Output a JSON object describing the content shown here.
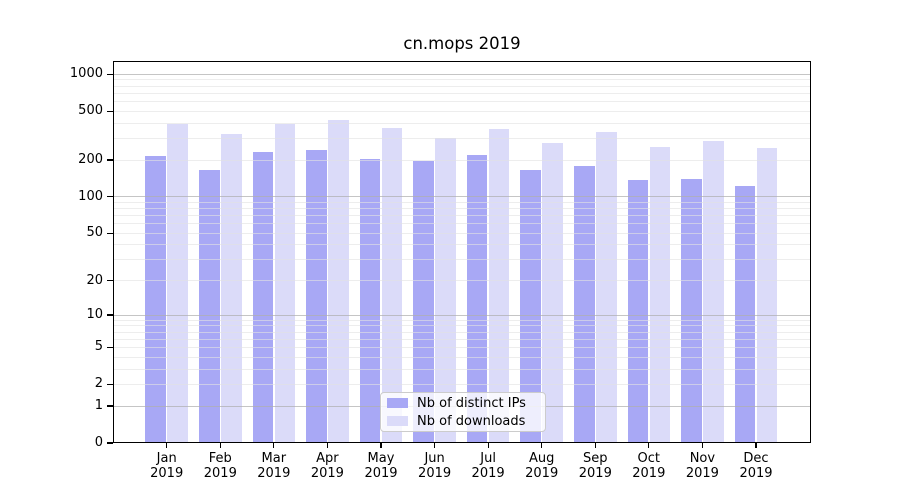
{
  "title": "cn.mops 2019",
  "chart_data": {
    "type": "bar",
    "title": "cn.mops 2019",
    "categories": [
      "Jan 2019",
      "Feb 2019",
      "Mar 2019",
      "Apr 2019",
      "May 2019",
      "Jun 2019",
      "Jul 2019",
      "Aug 2019",
      "Sep 2019",
      "Oct 2019",
      "Nov 2019",
      "Dec 2019"
    ],
    "months": [
      "Jan",
      "Feb",
      "Mar",
      "Apr",
      "May",
      "Jun",
      "Jul",
      "Aug",
      "Sep",
      "Oct",
      "Nov",
      "Dec"
    ],
    "year": "2019",
    "series": [
      {
        "name": "Nb of distinct IPs",
        "color": "#a8a8f5",
        "values": [
          216,
          166,
          231,
          240,
          204,
          197,
          222,
          166,
          178,
          137,
          141,
          122
        ]
      },
      {
        "name": "Nb of downloads",
        "color": "#dbdbf9",
        "values": [
          396,
          329,
          396,
          428,
          368,
          305,
          357,
          276,
          337,
          256,
          286,
          253
        ]
      }
    ],
    "y_axis": {
      "scale": "log1p",
      "min": 0,
      "max": 1284,
      "tick_labels": [
        "1000",
        "500",
        "200",
        "100",
        "50",
        "20",
        "10",
        "5",
        "2",
        "1",
        "0"
      ],
      "tick_values": [
        1000,
        500,
        200,
        100,
        50,
        20,
        10,
        5,
        2,
        1,
        0
      ],
      "major_gridlines": [
        1,
        10,
        100,
        1000
      ],
      "minor_gridlines": [
        2,
        3,
        4,
        5,
        6,
        7,
        8,
        9,
        20,
        30,
        40,
        50,
        60,
        70,
        80,
        90,
        200,
        300,
        400,
        500,
        600,
        700,
        800,
        900
      ]
    },
    "xlabel": "",
    "ylabel": "",
    "grid": "horizontal",
    "legend_position": "lower center inside"
  },
  "colors": {
    "ip_bar": "#a8a8f5",
    "downloads_bar": "#dbdbf9",
    "minor_grid": "#ededed",
    "major_grid": "#c5c5c5",
    "spine": "#000000",
    "background": "#ffffff",
    "legend_border": "#cccccc"
  }
}
